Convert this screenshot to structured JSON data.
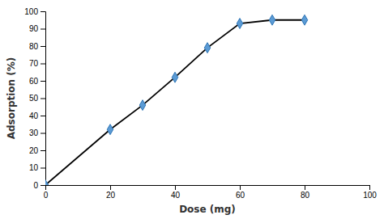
{
  "chart_data": {
    "type": "line",
    "xlabel": "Dose (mg)",
    "ylabel": "Adsorption (%)",
    "x": [
      0,
      20,
      30,
      40,
      50,
      60,
      70,
      80
    ],
    "values": [
      0,
      32,
      46,
      62,
      79,
      93,
      95,
      95
    ],
    "xlim": [
      0,
      100
    ],
    "ylim": [
      0,
      100
    ],
    "xticks": [
      0,
      20,
      40,
      60,
      80,
      100
    ],
    "yticks": [
      0,
      10,
      20,
      30,
      40,
      50,
      60,
      70,
      80,
      90,
      100
    ],
    "color": "#000000",
    "marker": "diamond",
    "grid": false
  }
}
